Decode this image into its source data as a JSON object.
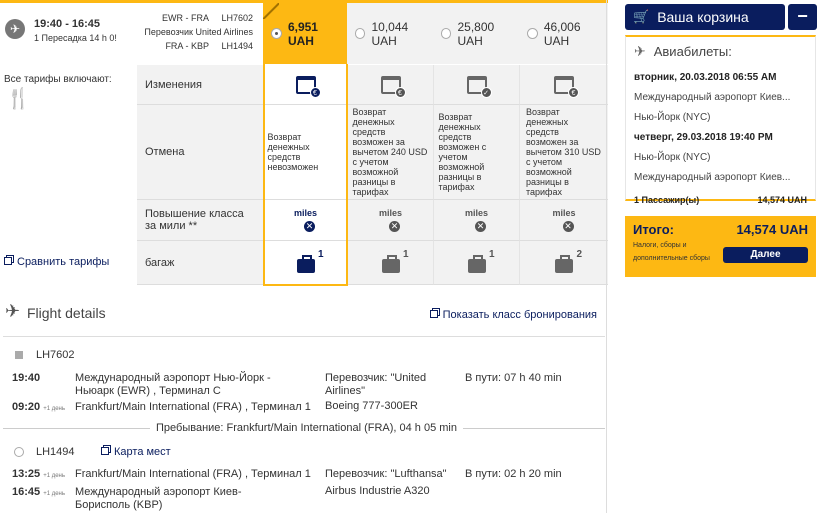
{
  "flight": {
    "times": "19:40 - 16:45",
    "stops": "1 Пересадка 14 h 0!",
    "seg1_route": "EWR - FRA",
    "seg1_code": "LH7602",
    "carrier": "Перевозчик United Airlines",
    "seg2_route": "FRA - KBP",
    "seg2_code": "LH1494"
  },
  "fares": [
    {
      "price": "6,951 UAH",
      "selected": true
    },
    {
      "price": "10,044 UAH",
      "selected": false
    },
    {
      "price": "25,800 UAH",
      "selected": false
    },
    {
      "price": "46,006 UAH",
      "selected": false
    }
  ],
  "includes_label": "Все тарифы включают:",
  "compare_link": "Сравнить тарифы",
  "rows": {
    "changes": "Изменения",
    "cancel": "Отмена",
    "upgrade": "Повышение класса за мили **",
    "baggage": "багаж"
  },
  "cancel_texts": [
    "Возврат денежных средств невозможен",
    "Возврат денежных средств возможен за вычетом 240 USD с учетом возможной разницы в тарифах",
    "Возврат денежных средств возможен с учетом возможной разницы в тарифах",
    "Возврат денежных средств возможен за вычетом 310 USD с учетом возможной разницы в тарифах"
  ],
  "miles_label": "miles",
  "baggage_counts": [
    "1",
    "1",
    "1",
    "2"
  ],
  "change_icons": [
    "euro",
    "euro",
    "check",
    "euro"
  ],
  "details": {
    "title": "Flight details",
    "show_class": "Показать класс бронирования",
    "seg1": {
      "code": "LH7602",
      "dep_time": "19:40",
      "dep_airport": "Международный аэропорт Нью-Йорк - Ньюарк (EWR) , Терминал C",
      "arr_time": "09:20",
      "arr_day": "+1 день",
      "arr_airport": "Frankfurt/Main International (FRA) , Терминал 1",
      "carrier": "Перевозчик: \"United Airlines\"",
      "aircraft": "Boeing 777-300ER",
      "duration": "В пути: 07 h 40 min"
    },
    "layover": "Пребывание: Frankfurt/Main International (FRA), 04 h 05 min",
    "seg2": {
      "code": "LH1494",
      "seat_map": "Карта мест",
      "dep_time": "13:25",
      "dep_day": "+1 день",
      "dep_airport": "Frankfurt/Main International (FRA) , Терминал 1",
      "arr_time": "16:45",
      "arr_day": "+1 день",
      "arr_airport": "Международный аэропорт Киев-Борисполь (KBP)",
      "carrier": "Перевозчик: \"Lufthansa\"",
      "aircraft": "Airbus Industrie A320",
      "duration": "В пути: 02 h 20 min"
    }
  },
  "cart": {
    "title": "Ваша корзина",
    "collapse": "−",
    "section": "Авиабилеты:",
    "out_date": "вторник, 20.03.2018 06:55 AM",
    "out_from": "Международный аэропорт Киев...",
    "out_to": "Нью-Йорк (NYC)",
    "ret_date": "четверг, 29.03.2018 19:40 PM",
    "ret_from": "Нью-Йорк (NYC)",
    "ret_to": "Международный аэропорт Киев...",
    "passengers": "1 Пассажир(ы)",
    "subtotal": "14,574 UAH",
    "total_label": "Итого:",
    "total": "14,574 UAH",
    "fees": "Налоги, сборы и дополнительные сборы",
    "next": "Далее"
  },
  "colors": {
    "accent": "#fdb813",
    "brand": "#0a1d5e"
  }
}
